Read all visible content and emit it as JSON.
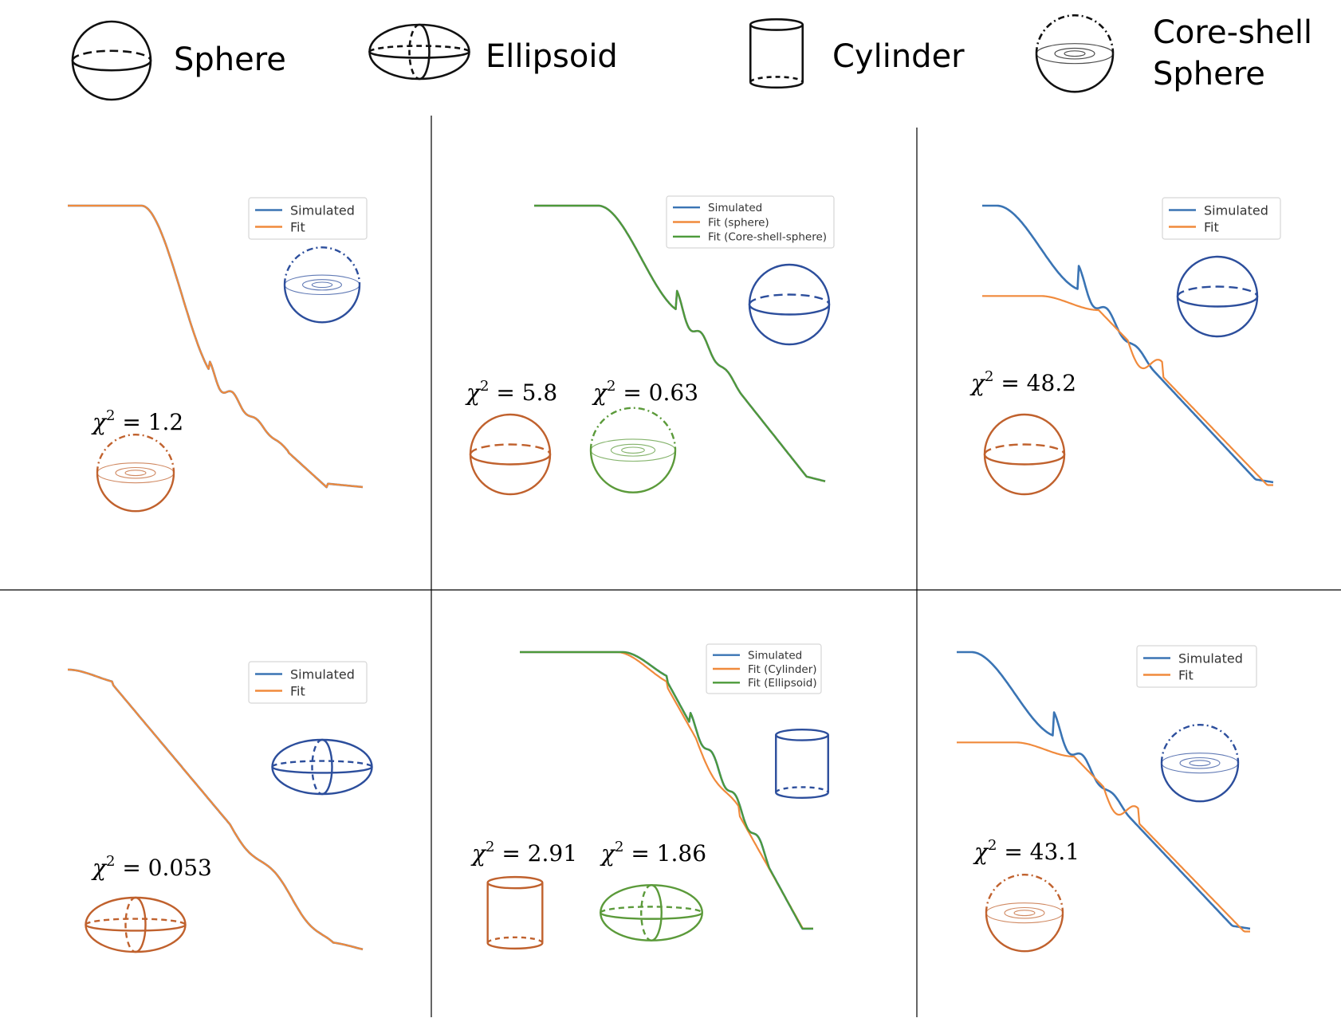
{
  "colors": {
    "simulated": "#3a74b4",
    "fit_orange": "#f08a3c",
    "fit_green": "#4c9a3a",
    "shape_blue": "#2c4e9c",
    "shape_orange": "#c0612d",
    "shape_green": "#5b9a3a",
    "divider": "#000000"
  },
  "key": [
    {
      "shape": "sphere",
      "label": "Sphere"
    },
    {
      "shape": "ellipsoid",
      "label": "Ellipsoid"
    },
    {
      "shape": "cylinder",
      "label": "Cylinder"
    },
    {
      "shape": "core-shell",
      "label_lines": [
        "Core-shell",
        "Sphere"
      ]
    }
  ],
  "chi_symbol": "χ",
  "chi_exponent": "2",
  "chart_data": [
    {
      "type": "line",
      "legend": [
        "Simulated",
        "Fit"
      ],
      "true_shape": "core-shell",
      "fits": [
        {
          "shape": "core-shell",
          "chi2": "1.2"
        }
      ],
      "series": [
        {
          "name": "Simulated",
          "profile": "coreshell"
        },
        {
          "name": "Fit",
          "profile": "coreshell"
        }
      ]
    },
    {
      "type": "line",
      "legend": [
        "Simulated",
        "Fit (sphere)",
        "Fit (Core-shell-sphere)"
      ],
      "true_shape": "sphere",
      "fits": [
        {
          "shape": "sphere",
          "chi2": "5.8"
        },
        {
          "shape": "core-shell",
          "chi2": "0.63"
        }
      ],
      "series": [
        {
          "name": "Simulated",
          "profile": "sphere"
        },
        {
          "name": "Fit (sphere)",
          "profile": "sphere"
        },
        {
          "name": "Fit (Core-shell-sphere)",
          "profile": "sphere"
        }
      ]
    },
    {
      "type": "line",
      "legend": [
        "Simulated",
        "Fit"
      ],
      "true_shape": "sphere",
      "fits": [
        {
          "shape": "sphere",
          "chi2": "48.2"
        }
      ],
      "series": [
        {
          "name": "Simulated",
          "profile": "large_sphere"
        },
        {
          "name": "Fit",
          "profile": "plateau_fit"
        }
      ]
    },
    {
      "type": "line",
      "legend": [
        "Simulated",
        "Fit"
      ],
      "true_shape": "ellipsoid",
      "fits": [
        {
          "shape": "ellipsoid",
          "chi2": "0.053"
        }
      ],
      "series": [
        {
          "name": "Simulated",
          "profile": "ellipsoid"
        },
        {
          "name": "Fit",
          "profile": "ellipsoid"
        }
      ]
    },
    {
      "type": "line",
      "legend": [
        "Simulated",
        "Fit (Cylinder)",
        "Fit (Ellipsoid)"
      ],
      "true_shape": "cylinder",
      "fits": [
        {
          "shape": "cylinder",
          "chi2": "2.91"
        },
        {
          "shape": "ellipsoid",
          "chi2": "1.86"
        }
      ],
      "series": [
        {
          "name": "Simulated",
          "profile": "cylinder"
        },
        {
          "name": "Fit (Cylinder)",
          "profile": "cylinder_fit"
        },
        {
          "name": "Fit (Ellipsoid)",
          "profile": "cylinder"
        }
      ]
    },
    {
      "type": "line",
      "legend": [
        "Simulated",
        "Fit"
      ],
      "true_shape": "core-shell",
      "fits": [
        {
          "shape": "core-shell",
          "chi2": "43.1"
        }
      ],
      "series": [
        {
          "name": "Simulated",
          "profile": "large_sphere"
        },
        {
          "name": "Fit",
          "profile": "plateau_fit"
        }
      ]
    }
  ]
}
